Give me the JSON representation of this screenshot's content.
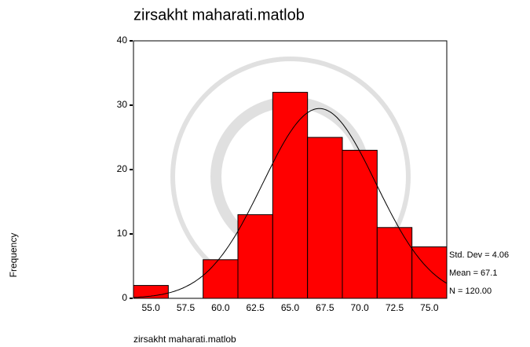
{
  "chart_data": {
    "type": "histogram",
    "title": "zirsakht maharati.matlob",
    "xlabel": "zirsakht maharati.matlob",
    "ylabel": "Frequency",
    "bins": [
      53.75,
      56.25,
      58.75,
      61.25,
      63.75,
      66.25,
      68.75,
      71.25,
      73.75,
      76.25
    ],
    "values": [
      2,
      0,
      6,
      13,
      32,
      25,
      23,
      11,
      8
    ],
    "color": "#ff0000",
    "xlim": [
      53.75,
      76.25
    ],
    "xticks": [
      {
        "value": 55,
        "label": "55.0"
      },
      {
        "value": 57.5,
        "label": "57.5"
      },
      {
        "value": 60,
        "label": "60.0"
      },
      {
        "value": 62.5,
        "label": "62.5"
      },
      {
        "value": 65,
        "label": "65.0"
      },
      {
        "value": 67.5,
        "label": "67.5"
      },
      {
        "value": 70,
        "label": "70.0"
      },
      {
        "value": 72.5,
        "label": "72.5"
      },
      {
        "value": 75,
        "label": "75.0"
      }
    ],
    "ylim": [
      0,
      40
    ],
    "yticks": [
      0,
      10,
      20,
      30,
      40
    ],
    "stats": [
      {
        "value": 4.06,
        "label": "Std. Dev = 4.06"
      },
      {
        "value": 67.1,
        "label": "Mean = 67.1"
      },
      {
        "value": 120,
        "label": "N = 120.00"
      }
    ]
  }
}
